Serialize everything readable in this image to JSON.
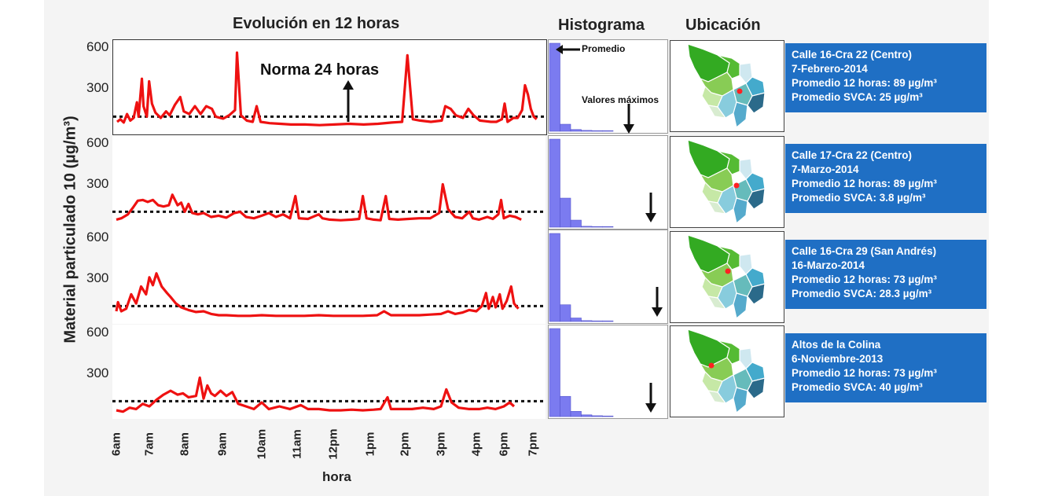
{
  "titles": {
    "evolution": "Evolución en 12 horas",
    "histogram": "Histograma",
    "location": "Ubicación"
  },
  "annotations": {
    "norma": "Norma 24 horas",
    "promedio": "Promedio",
    "valores_maximos": "Valores máximos"
  },
  "colors": {
    "series": "#ee1111",
    "histogram": "#7b7bf0",
    "info_box": "#1f6fc4",
    "norm_line": "#111111"
  },
  "chart_data": [
    {
      "type": "line",
      "ylabel": "Material particulado 10 (µg/m³)",
      "xlabel": "hora",
      "x_ticks": [
        "6am",
        "7am",
        "8am",
        "9am",
        "10am",
        "11am",
        "12pm",
        "1pm",
        "2pm",
        "3pm",
        "4pm",
        "6pm",
        "7pm"
      ],
      "y_ticks": [
        600,
        300
      ],
      "ylim": [
        0,
        650
      ],
      "norm_line_value": 100,
      "panels": [
        {
          "name": "Calle 16-Cra 22  (Centro)",
          "series": [
            [
              6.0,
              60
            ],
            [
              6.1,
              80
            ],
            [
              6.2,
              55
            ],
            [
              6.3,
              120
            ],
            [
              6.4,
              70
            ],
            [
              6.5,
              90
            ],
            [
              6.6,
              210
            ],
            [
              6.65,
              100
            ],
            [
              6.75,
              390
            ],
            [
              6.8,
              180
            ],
            [
              6.9,
              100
            ],
            [
              6.97,
              370
            ],
            [
              7.05,
              200
            ],
            [
              7.15,
              130
            ],
            [
              7.3,
              90
            ],
            [
              7.45,
              140
            ],
            [
              7.55,
              110
            ],
            [
              7.7,
              190
            ],
            [
              7.85,
              250
            ],
            [
              7.95,
              140
            ],
            [
              8.1,
              120
            ],
            [
              8.25,
              180
            ],
            [
              8.4,
              120
            ],
            [
              8.55,
              180
            ],
            [
              8.7,
              160
            ],
            [
              8.8,
              100
            ],
            [
              9.0,
              85
            ],
            [
              9.15,
              110
            ],
            [
              9.3,
              150
            ],
            [
              9.35,
              590
            ],
            [
              9.45,
              110
            ],
            [
              9.6,
              70
            ],
            [
              9.75,
              60
            ],
            [
              9.85,
              180
            ],
            [
              9.95,
              60
            ],
            [
              10.2,
              50
            ],
            [
              10.5,
              45
            ],
            [
              10.8,
              40
            ],
            [
              11.2,
              40
            ],
            [
              11.6,
              35
            ],
            [
              12.0,
              40
            ],
            [
              12.4,
              45
            ],
            [
              12.8,
              40
            ],
            [
              13.2,
              45
            ],
            [
              13.6,
              55
            ],
            [
              13.9,
              60
            ],
            [
              14.05,
              570
            ],
            [
              14.2,
              80
            ],
            [
              14.4,
              70
            ],
            [
              14.7,
              60
            ],
            [
              15.0,
              70
            ],
            [
              15.1,
              180
            ],
            [
              15.25,
              160
            ],
            [
              15.4,
              110
            ],
            [
              15.6,
              90
            ],
            [
              15.75,
              160
            ],
            [
              15.9,
              110
            ],
            [
              16.1,
              70
            ],
            [
              16.3,
              65
            ],
            [
              16.5,
              60
            ],
            [
              16.7,
              60
            ],
            [
              16.9,
              80
            ],
            [
              17.0,
              200
            ],
            [
              17.1,
              60
            ],
            [
              17.3,
              90
            ],
            [
              17.45,
              90
            ],
            [
              17.6,
              150
            ],
            [
              17.7,
              340
            ],
            [
              17.8,
              270
            ],
            [
              17.9,
              160
            ],
            [
              18.0,
              100
            ],
            [
              18.1,
              80
            ]
          ]
        },
        {
          "name": "Calle 17-Cra 22 (Centro)",
          "series": [
            [
              6.0,
              40
            ],
            [
              6.15,
              50
            ],
            [
              6.35,
              80
            ],
            [
              6.5,
              130
            ],
            [
              6.65,
              185
            ],
            [
              6.8,
              190
            ],
            [
              6.95,
              175
            ],
            [
              7.1,
              190
            ],
            [
              7.25,
              150
            ],
            [
              7.4,
              140
            ],
            [
              7.55,
              150
            ],
            [
              7.65,
              230
            ],
            [
              7.8,
              150
            ],
            [
              7.9,
              170
            ],
            [
              8.0,
              100
            ],
            [
              8.1,
              160
            ],
            [
              8.2,
              90
            ],
            [
              8.35,
              80
            ],
            [
              8.5,
              90
            ],
            [
              8.7,
              60
            ],
            [
              8.9,
              70
            ],
            [
              9.1,
              55
            ],
            [
              9.3,
              90
            ],
            [
              9.45,
              100
            ],
            [
              9.6,
              60
            ],
            [
              9.8,
              50
            ],
            [
              10.0,
              70
            ],
            [
              10.2,
              90
            ],
            [
              10.4,
              60
            ],
            [
              10.6,
              80
            ],
            [
              10.8,
              50
            ],
            [
              10.95,
              220
            ],
            [
              11.05,
              50
            ],
            [
              11.3,
              45
            ],
            [
              11.6,
              80
            ],
            [
              11.7,
              50
            ],
            [
              11.9,
              40
            ],
            [
              12.2,
              35
            ],
            [
              12.5,
              40
            ],
            [
              12.7,
              45
            ],
            [
              12.8,
              220
            ],
            [
              12.9,
              50
            ],
            [
              13.1,
              40
            ],
            [
              13.3,
              35
            ],
            [
              13.45,
              220
            ],
            [
              13.55,
              45
            ],
            [
              13.8,
              40
            ],
            [
              14.1,
              45
            ],
            [
              14.4,
              50
            ],
            [
              14.7,
              50
            ],
            [
              14.95,
              90
            ],
            [
              15.05,
              310
            ],
            [
              15.2,
              120
            ],
            [
              15.4,
              60
            ],
            [
              15.6,
              50
            ],
            [
              15.8,
              100
            ],
            [
              15.9,
              50
            ],
            [
              16.1,
              40
            ],
            [
              16.4,
              60
            ],
            [
              16.6,
              45
            ],
            [
              16.8,
              80
            ],
            [
              16.9,
              190
            ],
            [
              17.0,
              50
            ],
            [
              17.2,
              70
            ],
            [
              17.4,
              60
            ],
            [
              17.6,
              40
            ]
          ]
        },
        {
          "name": "Calle 16-Cra 29 (San Andrés)",
          "series": [
            [
              6.0,
              60
            ],
            [
              6.05,
              130
            ],
            [
              6.15,
              60
            ],
            [
              6.3,
              80
            ],
            [
              6.45,
              190
            ],
            [
              6.6,
              120
            ],
            [
              6.75,
              250
            ],
            [
              6.9,
              190
            ],
            [
              7.0,
              320
            ],
            [
              7.1,
              260
            ],
            [
              7.2,
              350
            ],
            [
              7.35,
              250
            ],
            [
              7.5,
              200
            ],
            [
              7.6,
              170
            ],
            [
              7.75,
              120
            ],
            [
              7.9,
              90
            ],
            [
              8.1,
              70
            ],
            [
              8.3,
              55
            ],
            [
              8.5,
              60
            ],
            [
              8.7,
              40
            ],
            [
              8.9,
              30
            ],
            [
              9.1,
              30
            ],
            [
              9.4,
              25
            ],
            [
              9.7,
              25
            ],
            [
              10.0,
              30
            ],
            [
              10.4,
              25
            ],
            [
              10.8,
              25
            ],
            [
              11.2,
              25
            ],
            [
              11.6,
              30
            ],
            [
              12.0,
              25
            ],
            [
              12.4,
              25
            ],
            [
              12.8,
              25
            ],
            [
              13.2,
              30
            ],
            [
              13.4,
              60
            ],
            [
              13.6,
              30
            ],
            [
              14.0,
              30
            ],
            [
              14.4,
              30
            ],
            [
              14.7,
              35
            ],
            [
              15.0,
              40
            ],
            [
              15.2,
              60
            ],
            [
              15.4,
              40
            ],
            [
              15.6,
              50
            ],
            [
              15.8,
              70
            ],
            [
              16.0,
              60
            ],
            [
              16.2,
              100
            ],
            [
              16.35,
              200
            ],
            [
              16.45,
              80
            ],
            [
              16.6,
              170
            ],
            [
              16.7,
              90
            ],
            [
              16.85,
              190
            ],
            [
              16.95,
              80
            ],
            [
              17.1,
              140
            ],
            [
              17.25,
              250
            ],
            [
              17.35,
              120
            ],
            [
              17.5,
              80
            ]
          ]
        },
        {
          "name": "Altos de la Colina",
          "series": [
            [
              6.0,
              30
            ],
            [
              6.2,
              20
            ],
            [
              6.4,
              50
            ],
            [
              6.6,
              40
            ],
            [
              6.8,
              80
            ],
            [
              7.0,
              60
            ],
            [
              7.2,
              110
            ],
            [
              7.4,
              150
            ],
            [
              7.6,
              180
            ],
            [
              7.8,
              150
            ],
            [
              7.95,
              160
            ],
            [
              8.1,
              130
            ],
            [
              8.3,
              140
            ],
            [
              8.4,
              280
            ],
            [
              8.5,
              120
            ],
            [
              8.6,
              220
            ],
            [
              8.7,
              160
            ],
            [
              8.8,
              140
            ],
            [
              8.95,
              180
            ],
            [
              9.1,
              140
            ],
            [
              9.25,
              170
            ],
            [
              9.4,
              80
            ],
            [
              9.6,
              60
            ],
            [
              9.8,
              40
            ],
            [
              10.0,
              90
            ],
            [
              10.2,
              40
            ],
            [
              10.5,
              60
            ],
            [
              10.8,
              40
            ],
            [
              11.1,
              70
            ],
            [
              11.3,
              40
            ],
            [
              11.6,
              40
            ],
            [
              11.9,
              30
            ],
            [
              12.2,
              30
            ],
            [
              12.5,
              35
            ],
            [
              12.8,
              30
            ],
            [
              13.1,
              35
            ],
            [
              13.3,
              40
            ],
            [
              13.5,
              130
            ],
            [
              13.6,
              40
            ],
            [
              13.9,
              40
            ],
            [
              14.2,
              40
            ],
            [
              14.5,
              50
            ],
            [
              14.8,
              40
            ],
            [
              15.0,
              60
            ],
            [
              15.15,
              190
            ],
            [
              15.3,
              90
            ],
            [
              15.5,
              50
            ],
            [
              15.8,
              40
            ],
            [
              16.1,
              40
            ],
            [
              16.4,
              50
            ],
            [
              16.7,
              40
            ],
            [
              17.0,
              60
            ],
            [
              17.2,
              90
            ],
            [
              17.35,
              60
            ]
          ]
        }
      ]
    },
    {
      "type": "bar",
      "name": "Histograma",
      "panels": [
        {
          "values": [
            100,
            8,
            2,
            1,
            0.5,
            0.3
          ]
        },
        {
          "values": [
            100,
            33,
            8,
            1,
            0.5,
            0.3
          ]
        },
        {
          "values": [
            100,
            19,
            4,
            1,
            0.5,
            0.3
          ]
        },
        {
          "values": [
            100,
            23,
            6,
            2,
            1,
            0.5
          ]
        }
      ]
    }
  ],
  "locations": [
    {
      "title": "Calle 16-Cra 22  (Centro)",
      "date": "7-Febrero-2014",
      "avg12": "Promedio 12 horas: 89 µg/m³",
      "svca": "Promedio SVCA: 25 µg/m³"
    },
    {
      "title": "Calle 17-Cra 22 (Centro)",
      "date": "7-Marzo-2014",
      "avg12": "Promedio 12 horas: 89 µg/m³",
      "svca": "Promedio SVCA: 3.8 µg/m³"
    },
    {
      "title": "Calle 16-Cra 29 (San Andrés)",
      "date": "16-Marzo-2014",
      "avg12": "Promedio 12 horas: 73 µg/m³",
      "svca": "Promedio SVCA: 28.3 µg/m³"
    },
    {
      "title": "Altos de la Colina",
      "date": "6-Noviembre-2013",
      "avg12": "Promedio 12 horas: 73 µg/m³",
      "svca": "Promedio SVCA: 40 µg/m³"
    }
  ]
}
